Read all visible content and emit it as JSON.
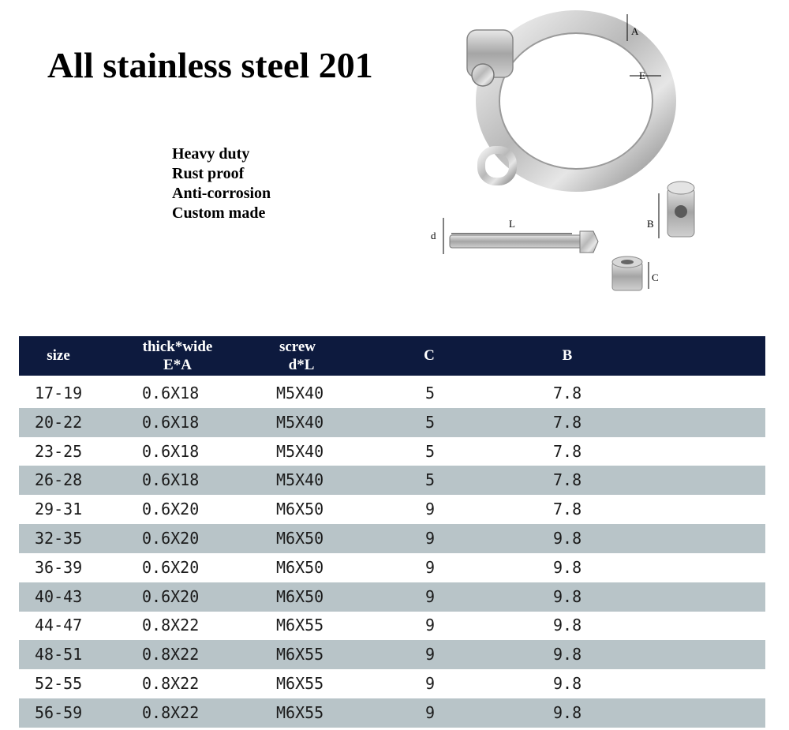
{
  "title": "All stainless steel 201",
  "features": [
    "Heavy duty",
    "Rust proof",
    "Anti-corrosion",
    "Custom made"
  ],
  "diagram_labels": {
    "a": "A",
    "e": "E",
    "l": "L",
    "d": "d",
    "b": "B",
    "c": "C"
  },
  "table": {
    "headers": {
      "size": "size",
      "ea_line1": "thick*wide",
      "ea_line2": "E*A",
      "screw_line1": "screw",
      "screw_line2": "d*L",
      "c": "C",
      "b": "B"
    },
    "rows": [
      [
        "17-19",
        "0.6X18",
        "M5X40",
        "5",
        "7.8"
      ],
      [
        "20-22",
        "0.6X18",
        "M5X40",
        "5",
        "7.8"
      ],
      [
        "23-25",
        "0.6X18",
        "M5X40",
        "5",
        "7.8"
      ],
      [
        "26-28",
        "0.6X18",
        "M5X40",
        "5",
        "7.8"
      ],
      [
        "29-31",
        "0.6X20",
        "M6X50",
        "9",
        "7.8"
      ],
      [
        "32-35",
        "0.6X20",
        "M6X50",
        "9",
        "9.8"
      ],
      [
        "36-39",
        "0.6X20",
        "M6X50",
        "9",
        "9.8"
      ],
      [
        "40-43",
        "0.6X20",
        "M6X50",
        "9",
        "9.8"
      ],
      [
        "44-47",
        "0.8X22",
        "M6X55",
        "9",
        "9.8"
      ],
      [
        "48-51",
        "0.8X22",
        "M6X55",
        "9",
        "9.8"
      ],
      [
        "52-55",
        "0.8X22",
        "M6X55",
        "9",
        "9.8"
      ],
      [
        "56-59",
        "0.8X22",
        "M6X55",
        "9",
        "9.8"
      ]
    ]
  }
}
